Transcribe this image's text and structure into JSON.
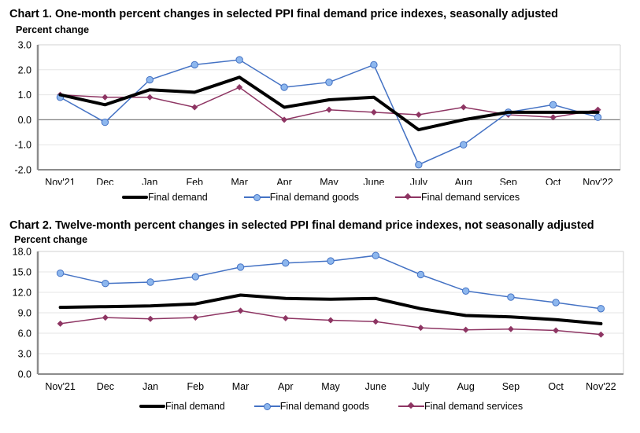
{
  "colors": {
    "final_demand": "#000000",
    "goods_line": "#4472c4",
    "goods_marker": "#8db7ee",
    "services": "#8e3563",
    "grid": "#e6e6e6",
    "axis": "#8c8c8c",
    "zero_line": "#7f7f7f"
  },
  "chart_data": [
    {
      "type": "line",
      "title": "Chart 1. One-month percent changes in selected PPI final demand price indexes, seasonally adjusted",
      "ylabel": "Percent change",
      "xlabel": "",
      "categories": [
        "Nov'21",
        "Dec",
        "Jan",
        "Feb",
        "Mar",
        "Apr",
        "May",
        "June",
        "July",
        "Aug",
        "Sep",
        "Oct",
        "Nov'22"
      ],
      "ylim": [
        -2.0,
        3.0
      ],
      "yticks": [
        "3.0",
        "2.0",
        "1.0",
        "0.0",
        "-1.0",
        "-2.0"
      ],
      "ytick_values": [
        3.0,
        2.0,
        1.0,
        0.0,
        -1.0,
        -2.0
      ],
      "grid": true,
      "legend_position": "bottom",
      "series": [
        {
          "name": "Final demand",
          "key": "final_demand",
          "values": [
            1.0,
            0.6,
            1.2,
            1.1,
            1.7,
            0.5,
            0.8,
            0.9,
            -0.4,
            0.0,
            0.3,
            0.3,
            0.3
          ]
        },
        {
          "name": "Final demand goods",
          "key": "goods",
          "values": [
            0.9,
            -0.1,
            1.6,
            2.2,
            2.4,
            1.3,
            1.5,
            2.2,
            -1.8,
            -1.0,
            0.3,
            0.6,
            0.1
          ]
        },
        {
          "name": "Final demand services",
          "key": "services",
          "values": [
            1.0,
            0.9,
            0.9,
            0.5,
            1.3,
            0.0,
            0.4,
            0.3,
            0.2,
            0.5,
            0.2,
            0.1,
            0.4
          ]
        }
      ]
    },
    {
      "type": "line",
      "title": "Chart 2. Twelve-month percent changes in selected PPI final demand price indexes, not seasonally adjusted",
      "ylabel": "Percent change",
      "xlabel": "",
      "categories": [
        "Nov'21",
        "Dec",
        "Jan",
        "Feb",
        "Mar",
        "Apr",
        "May",
        "June",
        "July",
        "Aug",
        "Sep",
        "Oct",
        "Nov'22"
      ],
      "ylim": [
        0.0,
        18.0
      ],
      "yticks": [
        "18.0",
        "15.0",
        "12.0",
        "9.0",
        "6.0",
        "3.0",
        "0.0"
      ],
      "ytick_values": [
        18.0,
        15.0,
        12.0,
        9.0,
        6.0,
        3.0,
        0.0
      ],
      "grid": true,
      "legend_position": "bottom",
      "series": [
        {
          "name": "Final demand",
          "key": "final_demand",
          "values": [
            9.8,
            9.9,
            10.0,
            10.3,
            11.6,
            11.1,
            11.0,
            11.1,
            9.6,
            8.6,
            8.4,
            8.0,
            7.4
          ]
        },
        {
          "name": "Final demand goods",
          "key": "goods",
          "values": [
            14.8,
            13.3,
            13.5,
            14.3,
            15.7,
            16.3,
            16.6,
            17.4,
            14.6,
            12.2,
            11.3,
            10.5,
            9.6
          ]
        },
        {
          "name": "Final demand services",
          "key": "services",
          "values": [
            7.4,
            8.3,
            8.1,
            8.3,
            9.3,
            8.2,
            7.9,
            7.7,
            6.8,
            6.5,
            6.6,
            6.4,
            5.8
          ]
        }
      ]
    }
  ]
}
